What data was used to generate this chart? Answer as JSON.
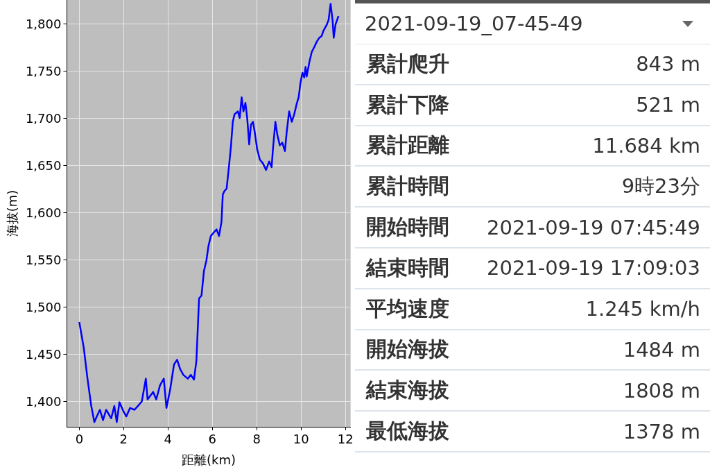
{
  "chart_data": [
    {
      "type": "line",
      "xlabel": "距離(km)",
      "ylabel": "海拔(m)",
      "xlim": [
        -0.56,
        12.23
      ],
      "ylim": [
        1373,
        1825
      ],
      "xticks": [
        0,
        2,
        4,
        6,
        8,
        10,
        12
      ],
      "yticks": [
        {
          "value": 1400,
          "label": "1,400"
        },
        {
          "value": 1450,
          "label": "1,450"
        },
        {
          "value": 1500,
          "label": "1,500"
        },
        {
          "value": 1550,
          "label": "1,550"
        },
        {
          "value": 1600,
          "label": "1,600"
        },
        {
          "value": 1650,
          "label": "1,650"
        },
        {
          "value": 1700,
          "label": "1,700"
        },
        {
          "value": 1750,
          "label": "1,750"
        },
        {
          "value": 1800,
          "label": "1,800"
        }
      ],
      "grid": true,
      "marker": "none",
      "line_style": "solid",
      "series": [
        {
          "color": "#0000ff",
          "x": [
            0,
            0.2,
            0.37,
            0.54,
            0.68,
            0.79,
            0.93,
            1.07,
            1.21,
            1.44,
            1.58,
            1.69,
            1.81,
            1.98,
            2.12,
            2.29,
            2.49,
            2.68,
            2.82,
            3.0,
            3.08,
            3.33,
            3.47,
            3.64,
            3.81,
            3.93,
            4.1,
            4.27,
            4.41,
            4.55,
            4.69,
            4.89,
            5.03,
            5.17,
            5.28,
            5.4,
            5.51,
            5.62,
            5.73,
            5.82,
            5.93,
            6.07,
            6.19,
            6.3,
            6.41,
            6.47,
            6.55,
            6.64,
            6.75,
            6.84,
            6.92,
            7.0,
            7.15,
            7.23,
            7.32,
            7.4,
            7.49,
            7.57,
            7.66,
            7.74,
            7.83,
            7.91,
            8.02,
            8.14,
            8.28,
            8.42,
            8.56,
            8.67,
            8.73,
            8.84,
            8.93,
            9.04,
            9.15,
            9.27,
            9.35,
            9.46,
            9.58,
            9.69,
            9.8,
            9.89,
            9.97,
            10.06,
            10.14,
            10.2,
            10.25,
            10.37,
            10.48,
            10.59,
            10.71,
            10.82,
            10.93,
            11.0,
            11.16,
            11.24,
            11.33,
            11.42,
            11.47,
            11.55,
            11.684
          ],
          "values": [
            1484,
            1457,
            1424,
            1395,
            1378,
            1384,
            1391,
            1380,
            1391,
            1382,
            1395,
            1378,
            1399,
            1390,
            1384,
            1393,
            1391,
            1396,
            1400,
            1424,
            1402,
            1410,
            1402,
            1417,
            1424,
            1393,
            1413,
            1439,
            1444,
            1434,
            1428,
            1424,
            1428,
            1423,
            1443,
            1509,
            1512,
            1538,
            1549,
            1564,
            1575,
            1579,
            1582,
            1575,
            1590,
            1619,
            1623,
            1625,
            1649,
            1671,
            1696,
            1704,
            1707,
            1700,
            1722,
            1707,
            1716,
            1700,
            1672,
            1693,
            1696,
            1685,
            1667,
            1656,
            1652,
            1645,
            1654,
            1648,
            1667,
            1696,
            1682,
            1671,
            1674,
            1665,
            1685,
            1707,
            1696,
            1704,
            1715,
            1722,
            1737,
            1748,
            1743,
            1754,
            1744,
            1759,
            1770,
            1775,
            1781,
            1785,
            1787,
            1792,
            1799,
            1804,
            1821,
            1803,
            1785,
            1799,
            1808
          ]
        }
      ]
    },
    {
      "type": "other",
      "title": "2021-09-19_07-45-49",
      "categories": [
        "累計爬升",
        "累計下降",
        "累計距離",
        "累計時間",
        "開始時間",
        "結束時間",
        "平均速度",
        "開始海拔",
        "結束海拔",
        "最低海拔"
      ],
      "value_labels": [
        "843 m",
        "521 m",
        "11.684 km",
        "9時23分",
        "2021-09-19 07:45:49",
        "2021-09-19 17:09:03",
        "1.245 km/h",
        "1484 m",
        "1808 m",
        "1378 m"
      ]
    }
  ]
}
